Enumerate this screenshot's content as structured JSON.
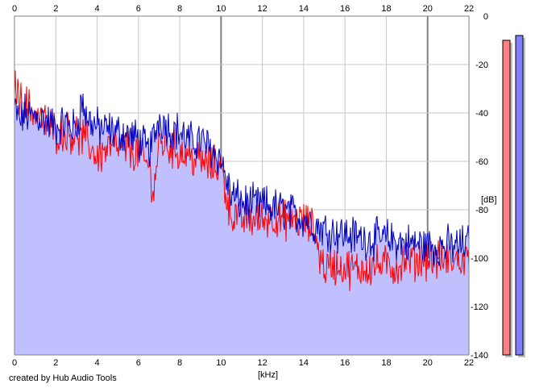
{
  "credit": "created by Hub Audio Tools",
  "chart_data": {
    "type": "line",
    "title": "",
    "xlabel": "[kHz]",
    "ylabel": "[dB]",
    "xlim": [
      0,
      22
    ],
    "ylim": [
      -140,
      0
    ],
    "x_ticks": [
      0,
      2,
      4,
      6,
      8,
      10,
      12,
      14,
      16,
      18,
      20,
      22
    ],
    "y_ticks": [
      0,
      -20,
      -40,
      -60,
      -80,
      -100,
      -120,
      -140
    ],
    "grid": true,
    "legend": "none",
    "colors": {
      "fill": "#c0c0ff",
      "red_channel": "#ff0000",
      "blue_channel": "#0000c0",
      "grid": "#c8c8c8",
      "grid_major": "#808080"
    },
    "series": [
      {
        "color": "#0000c0",
        "x": [
          0,
          0.25,
          0.5,
          0.75,
          1,
          1.5,
          2,
          2.5,
          3,
          3.25,
          3.5,
          4,
          4.5,
          5,
          5.5,
          6,
          6.5,
          6.75,
          7,
          7.5,
          8,
          8.5,
          9,
          9.5,
          10,
          10.25,
          10.5,
          11,
          11.5,
          12,
          12.5,
          13,
          13.5,
          14,
          14.5,
          15,
          15.5,
          16,
          16.5,
          17,
          17.5,
          18,
          18.5,
          19,
          19.5,
          20,
          20.5,
          21,
          21.5,
          22
        ],
        "values": [
          -38,
          -44,
          -40,
          -42,
          -41,
          -43,
          -46,
          -44,
          -47,
          -35,
          -42,
          -46,
          -47,
          -48,
          -49,
          -51,
          -56,
          -50,
          -42,
          -46,
          -48,
          -52,
          -51,
          -55,
          -59,
          -68,
          -74,
          -77,
          -78,
          -78,
          -79,
          -80,
          -82,
          -83,
          -86,
          -88,
          -89,
          -90,
          -91,
          -92,
          -92,
          -92,
          -93,
          -94,
          -94,
          -95,
          -95,
          -95,
          -95,
          -94
        ]
      },
      {
        "color": "#ff0000",
        "x": [
          0,
          0.25,
          0.5,
          0.75,
          1,
          1.5,
          2,
          2.5,
          3,
          3.5,
          4,
          4.5,
          5,
          5.5,
          6,
          6.5,
          6.75,
          7,
          7.5,
          8,
          8.5,
          9,
          9.5,
          10,
          10.25,
          10.5,
          11,
          11.5,
          12,
          12.5,
          13,
          13.5,
          14,
          14.5,
          14.75,
          15,
          15.5,
          16,
          16.5,
          17,
          17.5,
          18,
          18.5,
          19,
          19.5,
          20,
          20.5,
          21,
          21.5,
          22
        ],
        "values": [
          -26,
          -35,
          -36,
          -38,
          -40,
          -44,
          -48,
          -48,
          -49,
          -52,
          -58,
          -55,
          -54,
          -55,
          -57,
          -62,
          -72,
          -52,
          -54,
          -56,
          -58,
          -60,
          -62,
          -62,
          -74,
          -82,
          -84,
          -84,
          -84,
          -83,
          -84,
          -84,
          -85,
          -88,
          -98,
          -104,
          -103,
          -104,
          -105,
          -104,
          -103,
          -103,
          -104,
          -100,
          -101,
          -100,
          -101,
          -101,
          -101,
          -101
        ]
      }
    ],
    "level_meters": [
      {
        "color": "#ff8080",
        "level_db": -10
      },
      {
        "color": "#8080ff",
        "level_db": -8
      }
    ]
  }
}
